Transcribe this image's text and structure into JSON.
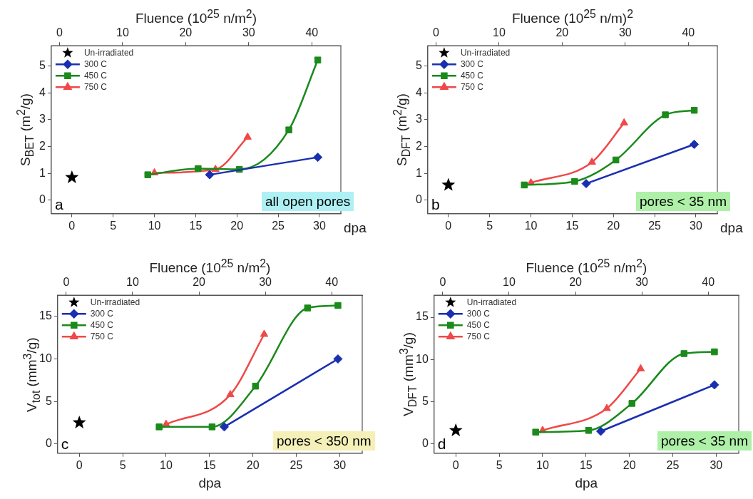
{
  "chart_data": [
    {
      "type": "line",
      "x2label": "Fluence (10$^{25}$ n/m$^{2}$)",
      "xlabel": "dpa",
      "ylabel": "S$_{BET}$ (m$^{2}$/g)",
      "xlim": [
        -2.5,
        32.6
      ],
      "xticks": [
        0,
        5,
        10,
        15,
        20,
        25,
        30
      ],
      "x2lim": [
        -1.3,
        44.6
      ],
      "x2ticks": [
        0,
        10,
        20,
        30,
        40
      ],
      "ylim": [
        -0.5,
        5.75
      ],
      "yticks": [
        0,
        1,
        2,
        3,
        4,
        5
      ],
      "legend": "top left",
      "annotations": [
        "a",
        "all open pores"
      ],
      "series": [
        {
          "name": "Un-irradiated",
          "type": "scatter",
          "marker": "star",
          "color": "#000000",
          "x": [
            0
          ],
          "values": [
            0.85
          ]
        },
        {
          "name": "300 C",
          "marker": "diamond",
          "color": "#1a2fb0",
          "x": [
            16.7,
            29.8
          ],
          "values": [
            0.95,
            1.6
          ]
        },
        {
          "name": "450 C",
          "marker": "square",
          "color": "#1a8a1a",
          "x": [
            9.2,
            15.3,
            20.3,
            26.3,
            29.8
          ],
          "values": [
            0.95,
            1.18,
            1.15,
            2.62,
            5.22
          ]
        },
        {
          "name": "750 C",
          "marker": "triangle",
          "color": "#f04848",
          "x": [
            10,
            17.4,
            21.3
          ],
          "values": [
            1.02,
            1.15,
            2.35
          ]
        }
      ]
    },
    {
      "type": "line",
      "x2label": "Fluence (10$^{25}$ n/m)$^{2}$",
      "xlabel": "dpa",
      "ylabel": "S$_{DFT}$ (m$^{2}$/g)",
      "xlim": [
        -2.5,
        32.6
      ],
      "xticks": [
        0,
        5,
        10,
        15,
        20,
        25,
        30
      ],
      "x2lim": [
        -1.3,
        44.6
      ],
      "x2ticks": [
        0,
        10,
        20,
        30,
        40
      ],
      "ylim": [
        -0.5,
        5.75
      ],
      "yticks": [
        0,
        1,
        2,
        3,
        4,
        5
      ],
      "legend": "top left",
      "annotations": [
        "b",
        "pores < 35 nm"
      ],
      "series": [
        {
          "name": "Un-irradiated",
          "type": "scatter",
          "marker": "star",
          "color": "#000000",
          "x": [
            0
          ],
          "values": [
            0.57
          ]
        },
        {
          "name": "300 C",
          "marker": "diamond",
          "color": "#1a2fb0",
          "x": [
            16.7,
            29.8
          ],
          "values": [
            0.62,
            2.08
          ]
        },
        {
          "name": "450 C",
          "marker": "square",
          "color": "#1a8a1a",
          "x": [
            9.2,
            15.3,
            20.3,
            26.3,
            29.8
          ],
          "values": [
            0.57,
            0.7,
            1.5,
            3.18,
            3.35
          ]
        },
        {
          "name": "750 C",
          "marker": "triangle",
          "color": "#f04848",
          "x": [
            10,
            17.4,
            21.3
          ],
          "values": [
            0.65,
            1.42,
            2.88
          ]
        }
      ]
    },
    {
      "type": "line",
      "x2label": "Fluence (10$^{25}$ n/m$^{2}$)",
      "xlabel": "dpa",
      "ylabel": "V$_{tot}$ (mm$^{3}$/g)",
      "xlim": [
        -2.5,
        32.6
      ],
      "xticks": [
        0,
        5,
        10,
        15,
        20,
        25,
        30
      ],
      "x2lim": [
        -1.3,
        44.6
      ],
      "x2ticks": [
        0,
        10,
        20,
        30,
        40
      ],
      "ylim": [
        -1.1,
        17.5
      ],
      "yticks": [
        0,
        5,
        10,
        15
      ],
      "legend": "top left",
      "annotations": [
        "c",
        "pores < 350 nm"
      ],
      "series": [
        {
          "name": "Un-irradiated",
          "type": "scatter",
          "marker": "star",
          "color": "#000000",
          "x": [
            0
          ],
          "values": [
            2.5
          ]
        },
        {
          "name": "300 C",
          "marker": "diamond",
          "color": "#1a2fb0",
          "x": [
            16.7,
            29.8
          ],
          "values": [
            2.0,
            10.0
          ]
        },
        {
          "name": "450 C",
          "marker": "square",
          "color": "#1a8a1a",
          "x": [
            9.2,
            15.3,
            20.3,
            26.3,
            29.8
          ],
          "values": [
            2.0,
            2.0,
            6.8,
            16.0,
            16.3
          ]
        },
        {
          "name": "750 C",
          "marker": "triangle",
          "color": "#f04848",
          "x": [
            10,
            17.4,
            21.3
          ],
          "values": [
            2.3,
            5.8,
            12.9
          ]
        }
      ]
    },
    {
      "type": "line",
      "x2label": "Fluence (10$^{25}$ n/m$^{2}$)",
      "xlabel": "dpa",
      "ylabel": "V$_{DFT}$ (mm$^{3}$/g)",
      "xlim": [
        -2.5,
        32.6
      ],
      "xticks": [
        0,
        5,
        10,
        15,
        20,
        25,
        30
      ],
      "x2lim": [
        -1.3,
        44.6
      ],
      "x2ticks": [
        0,
        10,
        20,
        30,
        40
      ],
      "ylim": [
        -1.1,
        17.6
      ],
      "yticks": [
        0,
        5,
        10,
        15
      ],
      "legend": "top left",
      "annotations": [
        "d",
        "pores < 35 nm"
      ],
      "series": [
        {
          "name": "Un-irradiated",
          "type": "scatter",
          "marker": "star",
          "color": "#000000",
          "x": [
            0
          ],
          "values": [
            1.6
          ]
        },
        {
          "name": "300 C",
          "marker": "diamond",
          "color": "#1a2fb0",
          "x": [
            16.7,
            29.8
          ],
          "values": [
            1.5,
            7.0
          ]
        },
        {
          "name": "450 C",
          "marker": "square",
          "color": "#1a8a1a",
          "x": [
            9.2,
            15.3,
            20.3,
            26.3,
            29.8
          ],
          "values": [
            1.4,
            1.6,
            4.8,
            10.7,
            10.9
          ]
        },
        {
          "name": "750 C",
          "marker": "triangle",
          "color": "#f04848",
          "x": [
            10,
            17.4,
            21.3
          ],
          "values": [
            1.6,
            4.2,
            8.9
          ]
        }
      ]
    }
  ]
}
